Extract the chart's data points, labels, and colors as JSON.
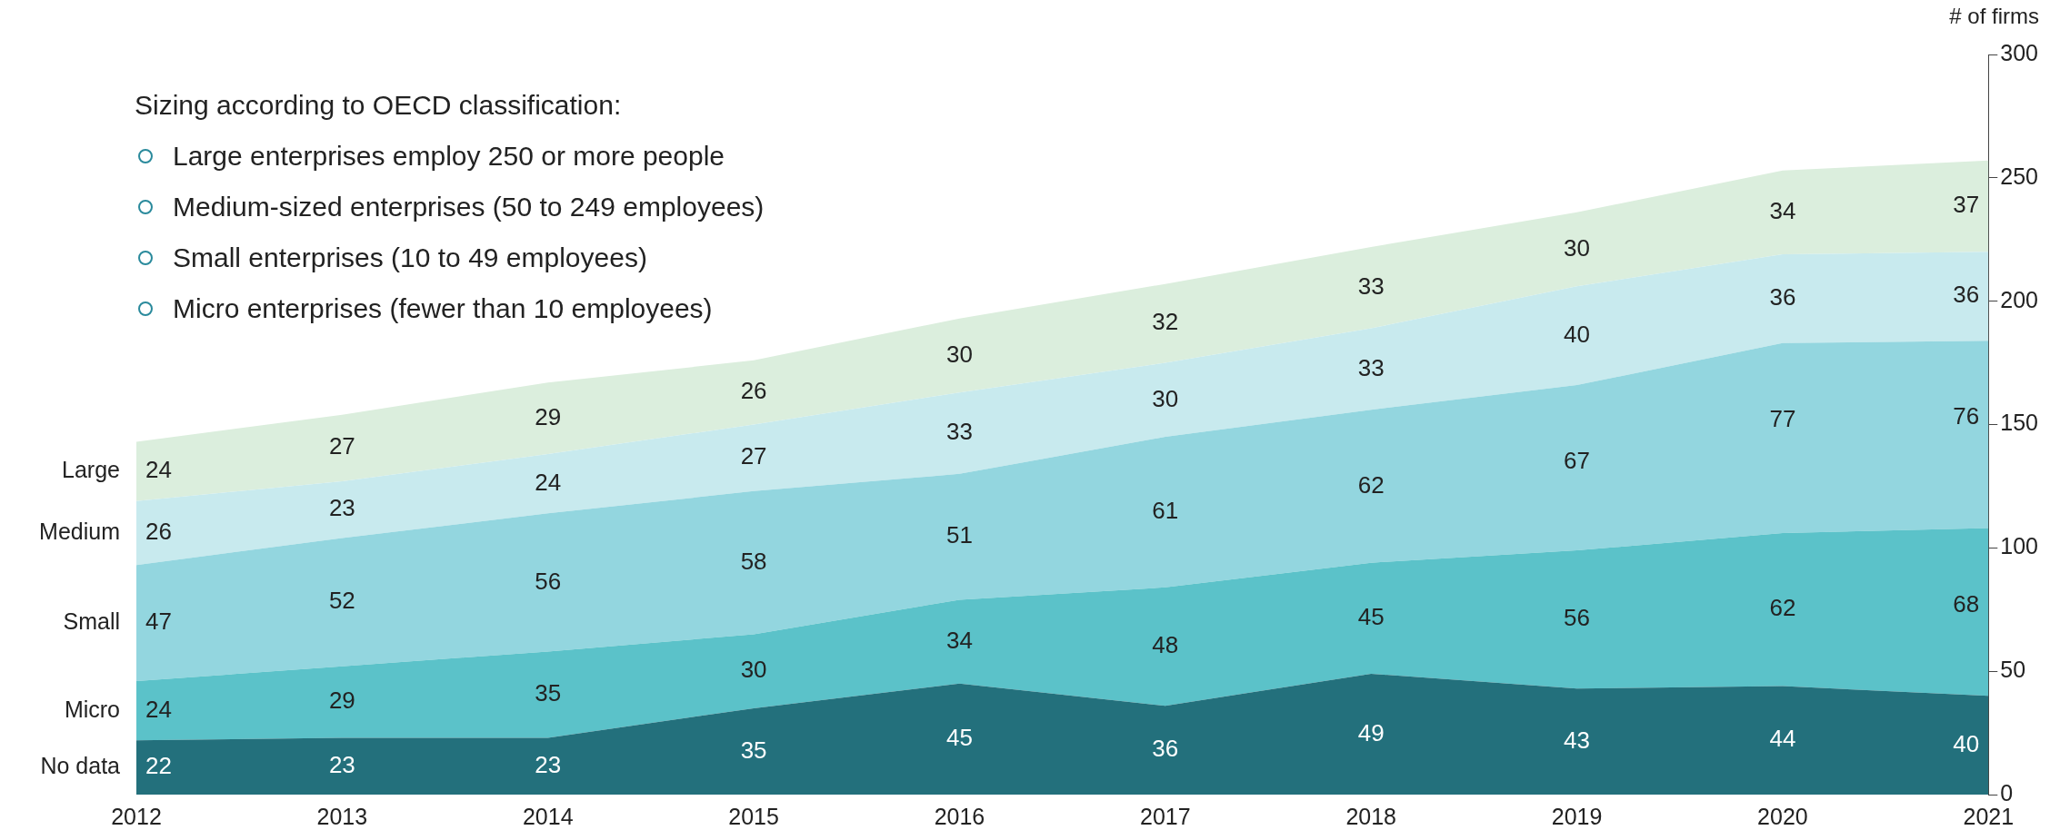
{
  "chart_data": {
    "type": "area",
    "ylabel": "# of firms",
    "stacked": true,
    "data_labels": true,
    "legend": false,
    "grid": false,
    "annotations": [
      "Sizing according to OECD classification:",
      "Large enterprises employ 250 or more people",
      "Medium-sized enterprises (50 to 249 employees)",
      "Small enterprises (10 to 49 employees)",
      "Micro enterprises (fewer than 10 employees)"
    ],
    "categories": [
      "2012",
      "2013",
      "2014",
      "2015",
      "2016",
      "2017",
      "2018",
      "2019",
      "2020",
      "2021"
    ],
    "ylim": [
      0,
      300
    ],
    "yticks": [
      0,
      50,
      100,
      150,
      200,
      250,
      300
    ],
    "series": [
      {
        "name": "No data",
        "color": "#23707c",
        "values": [
          22,
          23,
          23,
          35,
          45,
          36,
          49,
          43,
          44,
          40
        ]
      },
      {
        "name": "Micro",
        "color": "#5bc2c9",
        "values": [
          24,
          29,
          35,
          30,
          34,
          48,
          45,
          56,
          62,
          68
        ]
      },
      {
        "name": "Small",
        "color": "#93d6df",
        "values": [
          47,
          52,
          56,
          58,
          51,
          61,
          62,
          67,
          77,
          76
        ]
      },
      {
        "name": "Medium",
        "color": "#c8eaee",
        "values": [
          26,
          23,
          24,
          27,
          33,
          30,
          33,
          40,
          36,
          36
        ]
      },
      {
        "name": "Large",
        "color": "#dbeedd",
        "values": [
          24,
          27,
          29,
          26,
          30,
          32,
          33,
          30,
          34,
          37
        ]
      }
    ]
  }
}
